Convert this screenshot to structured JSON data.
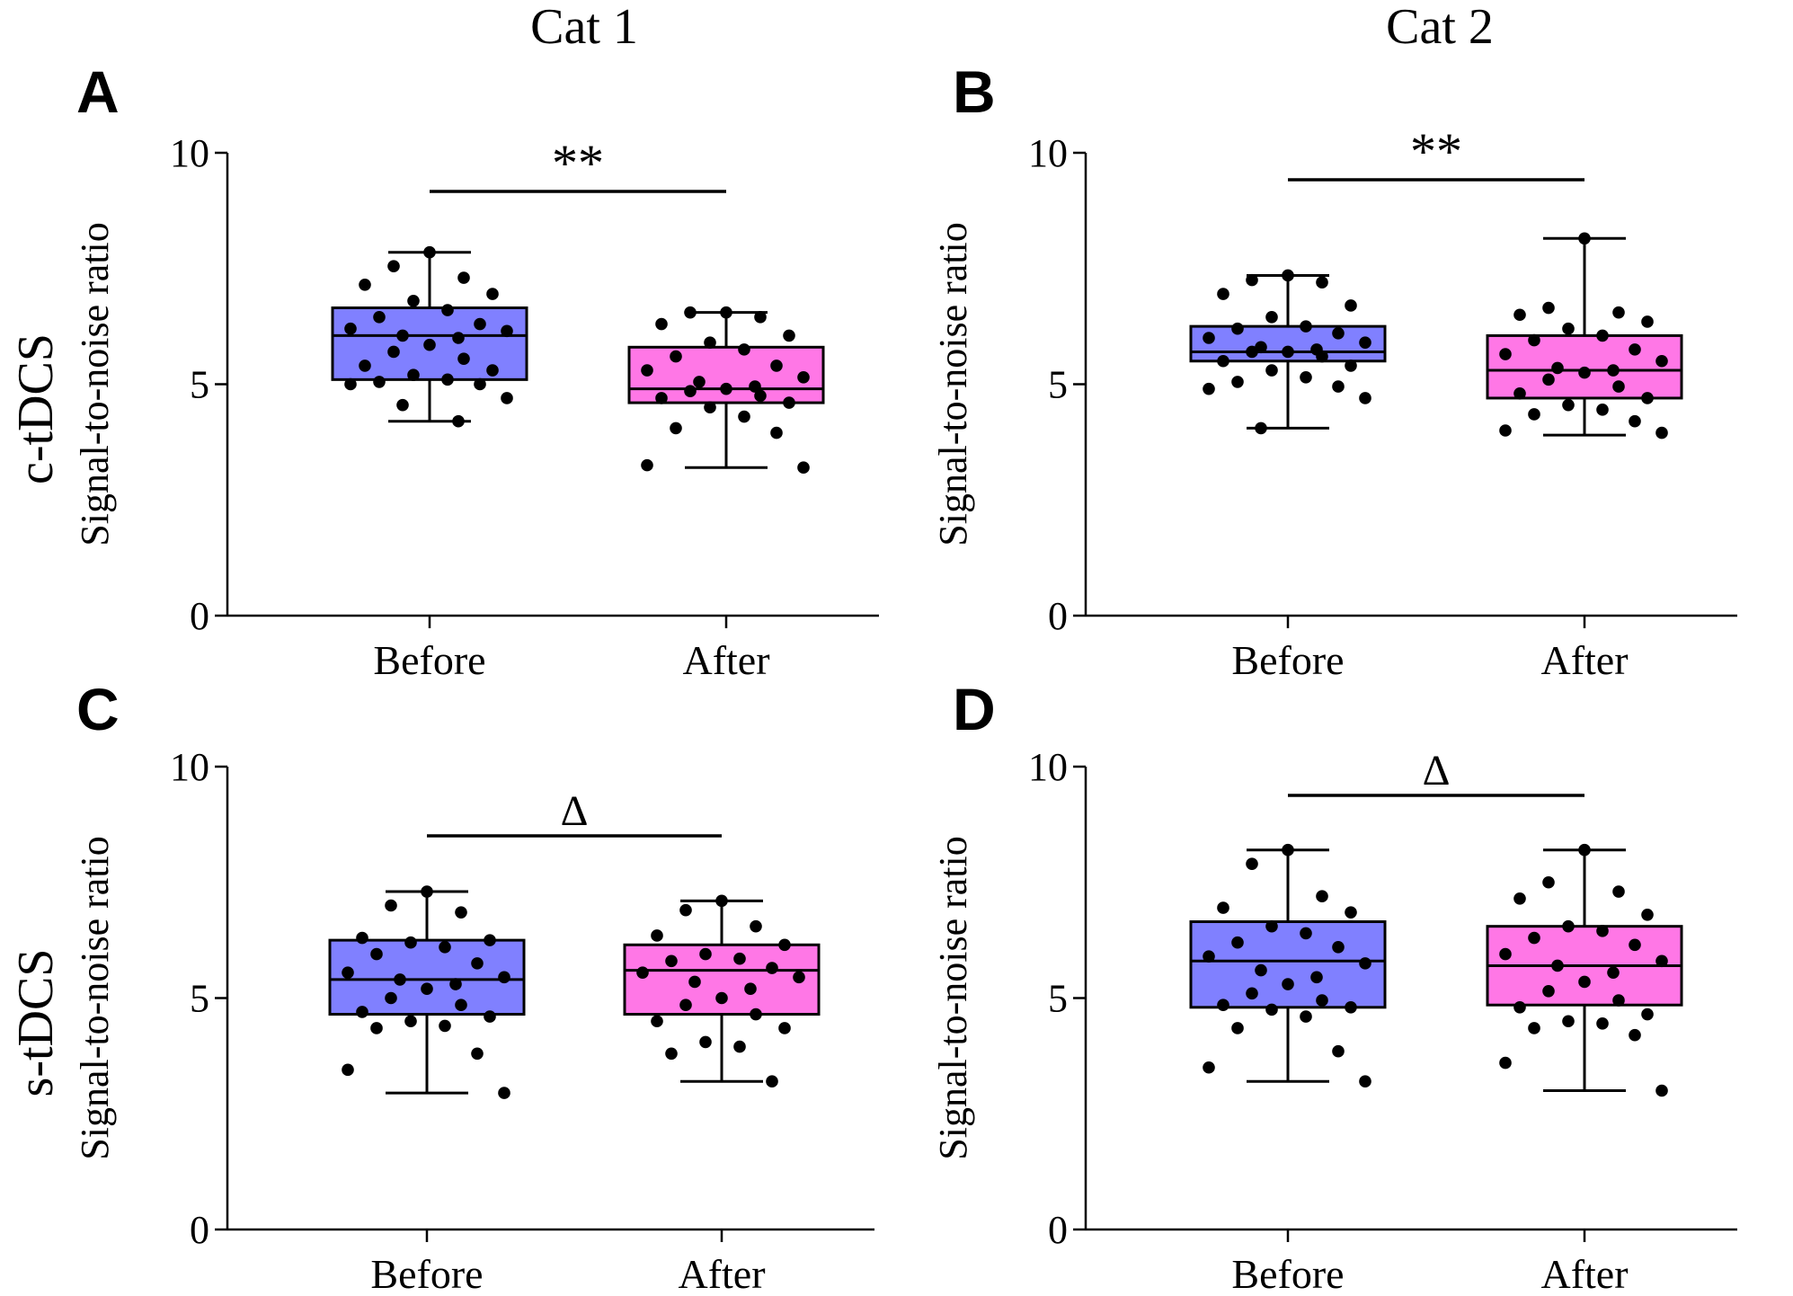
{
  "figure": {
    "column_titles": [
      "Cat 1",
      "Cat 2"
    ],
    "row_labels": [
      "c-tDCS",
      "s-tDCS"
    ]
  },
  "colors": {
    "before_fill": "#8080ff",
    "after_fill": "#ff77e6",
    "stroke": "#000000"
  },
  "chart_data": [
    {
      "panel": "A",
      "type": "box",
      "ylabel": "Signal-to-noise ratio",
      "ylim": [
        0,
        10
      ],
      "yticks": [
        0,
        5,
        10
      ],
      "categories": [
        "Before",
        "After"
      ],
      "significance": "**",
      "boxes": [
        {
          "name": "Before",
          "min": 4.2,
          "q1": 5.1,
          "median": 6.05,
          "q3": 6.65,
          "max": 7.85,
          "points": [
            7.85,
            7.55,
            7.3,
            7.15,
            6.95,
            6.8,
            6.6,
            6.45,
            6.3,
            6.2,
            6.15,
            6.05,
            6.0,
            5.85,
            5.7,
            5.55,
            5.4,
            5.3,
            5.2,
            5.1,
            5.05,
            5.0,
            5.0,
            4.7,
            4.55,
            4.2
          ]
        },
        {
          "name": "After",
          "min": 3.2,
          "q1": 4.6,
          "median": 4.9,
          "q3": 5.8,
          "max": 6.55,
          "points": [
            6.55,
            6.55,
            6.45,
            6.3,
            6.05,
            5.9,
            5.75,
            5.6,
            5.4,
            5.3,
            5.15,
            5.05,
            4.95,
            4.9,
            4.85,
            4.75,
            4.7,
            4.6,
            4.5,
            4.3,
            4.05,
            3.95,
            3.25,
            3.2
          ]
        }
      ]
    },
    {
      "panel": "B",
      "type": "box",
      "ylabel": "Signal-to-noise ratio",
      "ylim": [
        0,
        10
      ],
      "yticks": [
        0,
        5,
        10
      ],
      "categories": [
        "Before",
        "After"
      ],
      "significance": "**",
      "boxes": [
        {
          "name": "Before",
          "min": 4.05,
          "q1": 5.5,
          "median": 5.7,
          "q3": 6.25,
          "max": 7.35,
          "points": [
            7.35,
            7.25,
            7.2,
            6.95,
            6.7,
            6.45,
            6.25,
            6.2,
            6.1,
            6.0,
            5.9,
            5.8,
            5.75,
            5.7,
            5.7,
            5.6,
            5.5,
            5.4,
            5.3,
            5.15,
            5.05,
            4.95,
            4.9,
            4.7,
            4.05
          ]
        },
        {
          "name": "After",
          "min": 3.9,
          "q1": 4.7,
          "median": 5.3,
          "q3": 6.05,
          "max": 8.15,
          "points": [
            8.15,
            6.65,
            6.55,
            6.5,
            6.35,
            6.2,
            6.05,
            5.95,
            5.75,
            5.65,
            5.5,
            5.35,
            5.3,
            5.25,
            5.1,
            4.95,
            4.8,
            4.7,
            4.55,
            4.45,
            4.35,
            4.2,
            4.0,
            3.95
          ]
        }
      ]
    },
    {
      "panel": "C",
      "type": "box",
      "ylabel": "Signal-to-noise ratio",
      "ylim": [
        0,
        10
      ],
      "yticks": [
        0,
        5,
        10
      ],
      "categories": [
        "Before",
        "After"
      ],
      "significance": "Δ",
      "boxes": [
        {
          "name": "Before",
          "min": 2.95,
          "q1": 4.65,
          "median": 5.4,
          "q3": 6.25,
          "max": 7.3,
          "points": [
            7.3,
            7.0,
            6.85,
            6.3,
            6.25,
            6.2,
            6.1,
            5.95,
            5.75,
            5.55,
            5.45,
            5.4,
            5.3,
            5.2,
            5.0,
            4.85,
            4.7,
            4.6,
            4.5,
            4.4,
            4.35,
            3.8,
            3.45,
            2.95
          ]
        },
        {
          "name": "After",
          "min": 3.2,
          "q1": 4.65,
          "median": 5.6,
          "q3": 6.15,
          "max": 7.1,
          "points": [
            7.1,
            6.9,
            6.55,
            6.35,
            6.15,
            5.95,
            5.85,
            5.8,
            5.65,
            5.55,
            5.45,
            5.35,
            5.2,
            5.0,
            4.85,
            4.65,
            4.5,
            4.35,
            4.05,
            3.95,
            3.8,
            3.2
          ]
        }
      ]
    },
    {
      "panel": "D",
      "type": "box",
      "ylabel": "Signal-to-noise ratio",
      "ylim": [
        0,
        10
      ],
      "yticks": [
        0,
        5,
        10
      ],
      "categories": [
        "Before",
        "After"
      ],
      "significance": "Δ",
      "boxes": [
        {
          "name": "Before",
          "min": 3.2,
          "q1": 4.8,
          "median": 5.8,
          "q3": 6.65,
          "max": 8.2,
          "points": [
            8.2,
            7.9,
            7.2,
            6.95,
            6.85,
            6.55,
            6.4,
            6.2,
            6.1,
            5.9,
            5.75,
            5.6,
            5.45,
            5.3,
            5.1,
            4.95,
            4.85,
            4.8,
            4.75,
            4.6,
            4.35,
            3.85,
            3.5,
            3.2
          ]
        },
        {
          "name": "After",
          "min": 3.0,
          "q1": 4.85,
          "median": 5.7,
          "q3": 6.55,
          "max": 8.2,
          "points": [
            8.2,
            7.5,
            7.3,
            7.15,
            6.8,
            6.55,
            6.45,
            6.3,
            6.15,
            5.95,
            5.8,
            5.7,
            5.55,
            5.35,
            5.15,
            4.95,
            4.8,
            4.65,
            4.5,
            4.45,
            4.35,
            4.2,
            3.6,
            3.0
          ]
        }
      ]
    }
  ]
}
